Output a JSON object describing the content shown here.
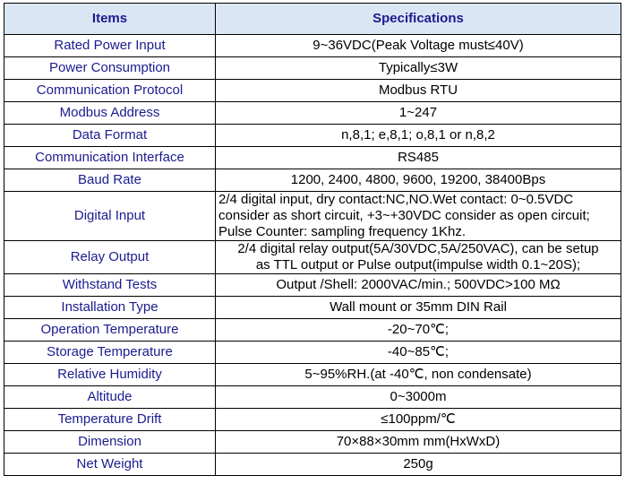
{
  "table": {
    "header": {
      "items": "Items",
      "specifications": "Specifications"
    },
    "rows": [
      {
        "item": "Rated Power Input",
        "spec": "9~36VDC(Peak Voltage must≤40V)"
      },
      {
        "item": "Power Consumption",
        "spec": "Typically≤3W"
      },
      {
        "item": "Communication Protocol",
        "spec": "Modbus RTU"
      },
      {
        "item": "Modbus Address",
        "spec": "1~247"
      },
      {
        "item": "Data Format",
        "spec": "n,8,1; e,8,1; o,8,1 or n,8,2"
      },
      {
        "item": "Communication Interface",
        "spec": "RS485"
      },
      {
        "item": "Baud Rate",
        "spec": "1200, 2400, 4800, 9600, 19200, 38400Bps"
      },
      {
        "item": "Digital Input",
        "spec": "2/4 digital input, dry contact:NC,NO.Wet contact: 0~0.5VDC\nconsider as short circuit, +3~+30VDC consider as open circuit;\nPulse Counter: sampling frequency 1Khz."
      },
      {
        "item": "Relay Output",
        "spec": "2/4 digital relay output(5A/30VDC,5A/250VAC), can be setup\nas TTL output or Pulse output(impulse width 0.1~20S);"
      },
      {
        "item": "Withstand Tests",
        "spec": "Output /Shell: 2000VAC/min.; 500VDC>100 MΩ"
      },
      {
        "item": "Installation Type",
        "spec": "Wall mount or 35mm DIN Rail"
      },
      {
        "item": "Operation Temperature",
        "spec": "-20~70℃;"
      },
      {
        "item": "Storage Temperature",
        "spec": "-40~85℃;"
      },
      {
        "item": "Relative Humidity",
        "spec": "5~95%RH.(at -40℃, non condensate)"
      },
      {
        "item": "Altitude",
        "spec": "0~3000m"
      },
      {
        "item": "Temperature Drift",
        "spec": "≤100ppm/℃"
      },
      {
        "item": "Dimension",
        "spec": "70×88×30mm mm(HxWxD)"
      },
      {
        "item": "Net Weight",
        "spec": "250g"
      }
    ]
  }
}
